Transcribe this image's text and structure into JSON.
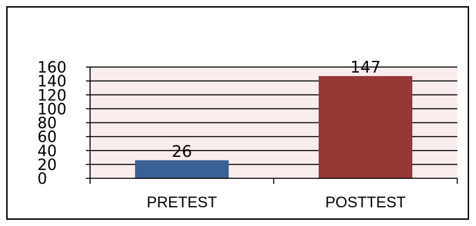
{
  "chart_data": {
    "type": "bar",
    "title": "",
    "xlabel": "",
    "ylabel": "",
    "categories": [
      "PRETEST",
      "POSTTEST"
    ],
    "values": [
      26,
      147
    ],
    "bar_colors": [
      "#3A6196",
      "#943735"
    ],
    "data_labels": [
      "26",
      "147"
    ],
    "ylim": [
      0,
      160
    ],
    "yticks": [
      0,
      20,
      40,
      60,
      80,
      100,
      120,
      140,
      160
    ],
    "ytick_labels": [
      "0",
      "20",
      "40",
      "60",
      "80",
      "100",
      "120",
      "140",
      "160"
    ],
    "plot_background": "#F9ECEC",
    "grid": true,
    "legend": false
  }
}
